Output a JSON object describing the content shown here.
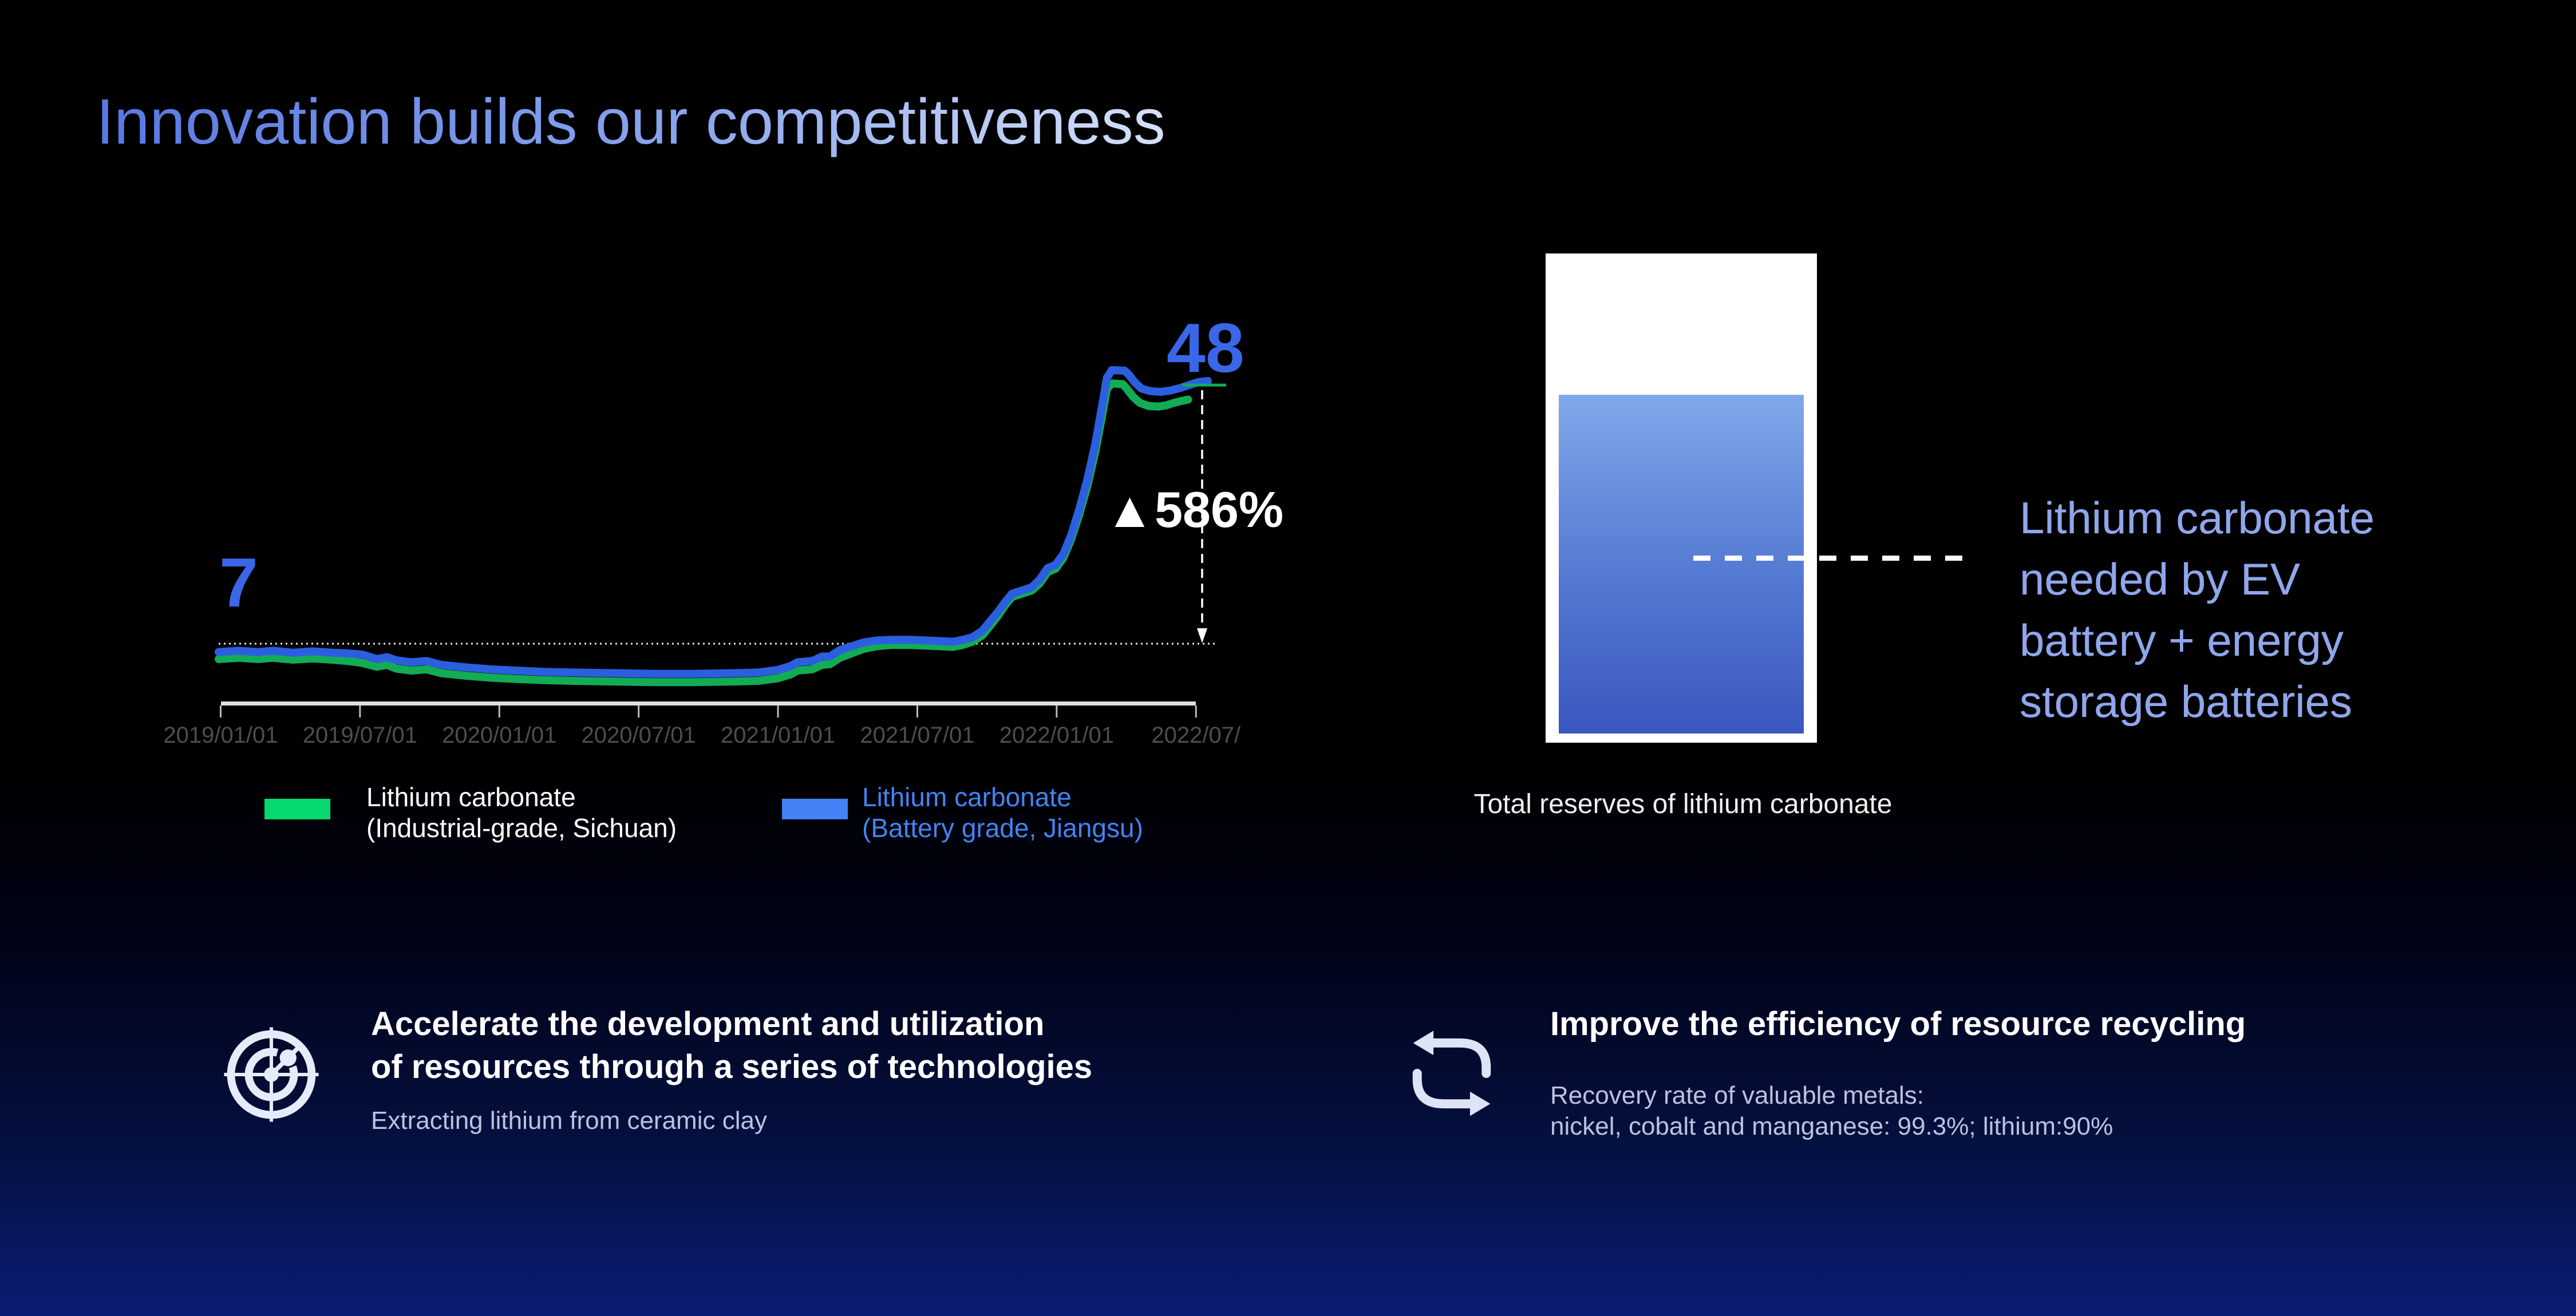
{
  "title": "Innovation builds our competitiveness",
  "chart": {
    "start_value_label": "7",
    "peak_value_label": "48",
    "increase_label": "▲586%"
  },
  "chart_data": [
    {
      "type": "line",
      "title": "Lithium carbonate price trend 2019-2022",
      "x_labels": [
        "2019/01/01",
        "2019/07/01",
        "2020/01/01",
        "2020/07/01",
        "2021/01/01",
        "2021/07/01",
        "2022/01/01",
        "2022/07/"
      ],
      "ylim_visual": [
        0,
        50
      ],
      "grid": "off",
      "legend_position": "bottom",
      "annotations": {
        "start_level": 7,
        "end_level": 48,
        "change_pct": 586,
        "reference_line_value": 7
      },
      "series": [
        {
          "name": "Lithium carbonate (Industrial-grade, Sichuan)",
          "color": "#12ac55",
          "points": [
            [
              0.0,
              4.6
            ],
            [
              0.02,
              4.8
            ],
            [
              0.04,
              4.6
            ],
            [
              0.055,
              4.8
            ],
            [
              0.075,
              4.5
            ],
            [
              0.095,
              4.7
            ],
            [
              0.115,
              4.5
            ],
            [
              0.13,
              4.3
            ],
            [
              0.145,
              4.0
            ],
            [
              0.16,
              3.4
            ],
            [
              0.17,
              3.7
            ],
            [
              0.18,
              3.1
            ],
            [
              0.195,
              2.8
            ],
            [
              0.21,
              3.0
            ],
            [
              0.225,
              2.4
            ],
            [
              0.25,
              2.0
            ],
            [
              0.275,
              1.7
            ],
            [
              0.3,
              1.5
            ],
            [
              0.33,
              1.3
            ],
            [
              0.36,
              1.2
            ],
            [
              0.4,
              1.1
            ],
            [
              0.44,
              1.0
            ],
            [
              0.48,
              1.0
            ],
            [
              0.52,
              1.1
            ],
            [
              0.545,
              1.2
            ],
            [
              0.565,
              1.6
            ],
            [
              0.578,
              2.2
            ],
            [
              0.585,
              2.8
            ],
            [
              0.6,
              3.0
            ],
            [
              0.61,
              3.7
            ],
            [
              0.618,
              3.8
            ],
            [
              0.628,
              4.8
            ],
            [
              0.64,
              5.5
            ],
            [
              0.652,
              6.2
            ],
            [
              0.665,
              6.6
            ],
            [
              0.68,
              6.8
            ],
            [
              0.7,
              6.8
            ],
            [
              0.715,
              6.7
            ],
            [
              0.73,
              6.6
            ],
            [
              0.742,
              6.5
            ],
            [
              0.752,
              6.8
            ],
            [
              0.762,
              7.3
            ],
            [
              0.772,
              8.3
            ],
            [
              0.78,
              9.8
            ],
            [
              0.788,
              11.4
            ],
            [
              0.795,
              13.0
            ],
            [
              0.802,
              14.3
            ],
            [
              0.812,
              14.8
            ],
            [
              0.822,
              15.3
            ],
            [
              0.83,
              16.4
            ],
            [
              0.838,
              18.2
            ],
            [
              0.846,
              18.7
            ],
            [
              0.854,
              20.4
            ],
            [
              0.862,
              23.4
            ],
            [
              0.87,
              27.2
            ],
            [
              0.878,
              31.5
            ],
            [
              0.886,
              36.8
            ],
            [
              0.893,
              42.5
            ],
            [
              0.898,
              46.8
            ],
            [
              0.903,
              47.6
            ],
            [
              0.914,
              47.5
            ],
            [
              0.918,
              46.8
            ],
            [
              0.924,
              45.6
            ],
            [
              0.931,
              44.6
            ],
            [
              0.94,
              44.1
            ],
            [
              0.95,
              44.0
            ],
            [
              0.958,
              44.2
            ],
            [
              0.966,
              44.6
            ],
            [
              0.974,
              44.9
            ],
            [
              0.98,
              45.1
            ]
          ]
        },
        {
          "name": "Lithium carbonate (Battery grade, Jiangsu)",
          "color": "#2b5fe0",
          "points": [
            [
              0.0,
              5.7
            ],
            [
              0.02,
              5.9
            ],
            [
              0.04,
              5.7
            ],
            [
              0.055,
              5.9
            ],
            [
              0.075,
              5.6
            ],
            [
              0.095,
              5.8
            ],
            [
              0.115,
              5.6
            ],
            [
              0.13,
              5.5
            ],
            [
              0.145,
              5.3
            ],
            [
              0.16,
              4.6
            ],
            [
              0.17,
              4.9
            ],
            [
              0.18,
              4.4
            ],
            [
              0.195,
              4.1
            ],
            [
              0.21,
              4.3
            ],
            [
              0.225,
              3.7
            ],
            [
              0.25,
              3.3
            ],
            [
              0.275,
              3.0
            ],
            [
              0.3,
              2.8
            ],
            [
              0.33,
              2.6
            ],
            [
              0.36,
              2.5
            ],
            [
              0.4,
              2.4
            ],
            [
              0.44,
              2.3
            ],
            [
              0.48,
              2.3
            ],
            [
              0.52,
              2.4
            ],
            [
              0.545,
              2.5
            ],
            [
              0.565,
              2.9
            ],
            [
              0.578,
              3.5
            ],
            [
              0.585,
              4.1
            ],
            [
              0.6,
              4.3
            ],
            [
              0.61,
              5.0
            ],
            [
              0.618,
              5.0
            ],
            [
              0.628,
              6.0
            ],
            [
              0.64,
              6.6
            ],
            [
              0.652,
              7.2
            ],
            [
              0.665,
              7.5
            ],
            [
              0.68,
              7.6
            ],
            [
              0.7,
              7.6
            ],
            [
              0.715,
              7.5
            ],
            [
              0.73,
              7.4
            ],
            [
              0.742,
              7.3
            ],
            [
              0.752,
              7.6
            ],
            [
              0.762,
              8.0
            ],
            [
              0.772,
              9.0
            ],
            [
              0.78,
              10.5
            ],
            [
              0.788,
              12.0
            ],
            [
              0.795,
              13.5
            ],
            [
              0.802,
              14.8
            ],
            [
              0.812,
              15.3
            ],
            [
              0.822,
              15.8
            ],
            [
              0.83,
              17.0
            ],
            [
              0.838,
              18.8
            ],
            [
              0.846,
              19.3
            ],
            [
              0.854,
              21.0
            ],
            [
              0.862,
              24.0
            ],
            [
              0.87,
              28.0
            ],
            [
              0.878,
              32.5
            ],
            [
              0.886,
              38.0
            ],
            [
              0.893,
              44.0
            ],
            [
              0.898,
              48.5
            ],
            [
              0.903,
              49.7
            ],
            [
              0.916,
              49.6
            ],
            [
              0.92,
              49.0
            ],
            [
              0.926,
              47.8
            ],
            [
              0.933,
              46.8
            ],
            [
              0.942,
              46.4
            ],
            [
              0.952,
              46.3
            ],
            [
              0.962,
              46.5
            ],
            [
              0.972,
              46.9
            ],
            [
              0.98,
              47.3
            ],
            [
              0.99,
              47.8
            ],
            [
              1.0,
              48.0
            ]
          ]
        }
      ]
    },
    {
      "type": "bar",
      "title": "Total reserves of lithium carbonate",
      "categories": [
        "Total reserves of lithium carbonate"
      ],
      "values": [
        100
      ],
      "annotation": "Dashed level (~47% of reserves) = lithium carbonate needed by EV battery + energy storage batteries"
    }
  ],
  "legend": [
    {
      "line1": "Lithium carbonate",
      "line2": "(Industrial-grade, Sichuan)",
      "swatch_color": "#06d96e",
      "text_color": "#ffffff"
    },
    {
      "line1": "Lithium carbonate",
      "line2": "(Battery grade, Jiangsu)",
      "swatch_color": "#4482f7",
      "text_color": "#4184f6"
    }
  ],
  "reserves": {
    "caption": "Total reserves of lithium carbonate",
    "note_lines": [
      "Lithium carbonate",
      "needed by EV",
      "battery + energy",
      "storage batteries"
    ]
  },
  "initiatives": [
    {
      "icon": "radar-icon",
      "heading_lines": [
        "Accelerate the development and utilization",
        "of resources through a series of technologies"
      ],
      "sub_lines": [
        "Extracting lithium from ceramic clay"
      ]
    },
    {
      "icon": "recycle-icon",
      "heading_lines": [
        "Improve the efficiency of resource recycling"
      ],
      "sub_lines": [
        "Recovery rate of valuable metals:",
        "nickel, cobalt and  manganese: 99.3%; lithium:90%"
      ]
    }
  ],
  "colors": {
    "accent_blue": "#3a67e8",
    "line_blue": "#2b5fe0",
    "line_green": "#12ac55",
    "bottom_bg": "#0b1c74"
  }
}
